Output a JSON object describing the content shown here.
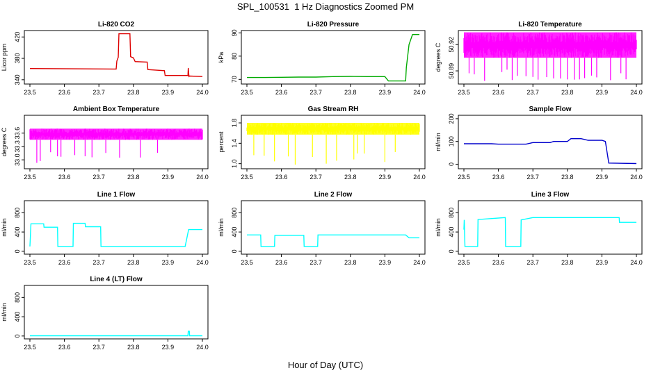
{
  "page": {
    "title": "SPL_100531  1 Hz Diagnostics Zoomed PM",
    "xlabel": "Hour of Day (UTC)"
  },
  "chart_data": [
    {
      "type": "line",
      "title": "Li-820 CO2",
      "ylabel": "Licor ppm",
      "color": "#dd0000",
      "xlim": [
        23.5,
        24.0
      ],
      "ylim": [
        332,
        432
      ],
      "yticks": [
        340,
        380,
        420
      ],
      "ytick_labels": [
        "340",
        "380",
        "420"
      ],
      "xticks": [
        23.5,
        23.6,
        23.7,
        23.8,
        23.9,
        24.0
      ],
      "series": [
        {
          "x": [
            23.5,
            23.75,
            23.752,
            23.756,
            23.758,
            23.79,
            23.792,
            23.8,
            23.805,
            23.84,
            23.842,
            23.89,
            23.892,
            23.958,
            23.959,
            23.961,
            23.963,
            24.0
          ],
          "y": [
            361,
            360,
            375,
            382,
            426,
            426,
            383,
            381,
            374,
            373,
            359,
            357,
            348,
            348,
            362,
            346,
            347,
            346
          ]
        }
      ]
    },
    {
      "type": "line",
      "title": "Li-820 Pressure",
      "ylabel": "kPa",
      "color": "#00aa00",
      "xlim": [
        23.5,
        24.0
      ],
      "ylim": [
        68,
        91
      ],
      "yticks": [
        70,
        80,
        90
      ],
      "ytick_labels": [
        "70",
        "80",
        "90"
      ],
      "xticks": [
        23.5,
        23.6,
        23.7,
        23.8,
        23.9,
        24.0
      ],
      "series": [
        {
          "x": [
            23.5,
            23.55,
            23.6,
            23.65,
            23.7,
            23.75,
            23.8,
            23.85,
            23.9,
            23.91,
            23.96,
            23.962,
            23.97,
            23.98,
            24.0
          ],
          "y": [
            70.8,
            70.8,
            70.9,
            71.0,
            71.0,
            71.2,
            71.3,
            71.2,
            71.2,
            69.3,
            69.3,
            75,
            85,
            89.3,
            89.3
          ]
        }
      ]
    },
    {
      "type": "line",
      "title": "Li-820 Temperature",
      "ylabel": "degrees C",
      "color": "#ff00ff",
      "xlim": [
        23.5,
        24.0
      ],
      "ylim": [
        50.875,
        50.936
      ],
      "yticks": [
        50.89,
        50.92
      ],
      "ytick_labels": [
        "50.89",
        "50.92"
      ],
      "xticks": [
        23.5,
        23.6,
        23.7,
        23.8,
        23.9,
        24.0
      ],
      "band": {
        "low": 50.905,
        "high": 50.934
      },
      "spikes": [
        23.515,
        23.53,
        23.56,
        23.61,
        23.625,
        23.64,
        23.655,
        23.68,
        23.7,
        23.715,
        23.74,
        23.76,
        23.78,
        23.8,
        23.82,
        23.835,
        23.85,
        23.87,
        23.885,
        23.925,
        23.955,
        23.97
      ],
      "spike_min": 50.878
    },
    {
      "type": "line",
      "title": "Ambient Box Temperature",
      "ylabel": "degrees C",
      "color": "#ff00ff",
      "xlim": [
        23.5,
        24.0
      ],
      "ylim": [
        32.8,
        34.0
      ],
      "yticks": [
        33.0,
        33.3,
        33.6
      ],
      "ytick_labels": [
        "33.0",
        "33.3",
        "33.6"
      ],
      "xticks": [
        23.5,
        23.6,
        23.7,
        23.8,
        23.9,
        24.0
      ],
      "band": {
        "low": 33.45,
        "high": 33.7
      },
      "spikes": [
        23.52,
        23.53,
        23.56,
        23.58,
        23.59,
        23.63,
        23.66,
        23.68,
        23.72,
        23.76,
        23.82,
        23.87
      ],
      "spike_min": 32.9
    },
    {
      "type": "line",
      "title": "Gas Stream RH",
      "ylabel": "percent",
      "color": "#ffff00",
      "xlim": [
        23.5,
        24.0
      ],
      "ylim": [
        0.9,
        1.95
      ],
      "yticks": [
        1.0,
        1.4,
        1.8
      ],
      "ytick_labels": [
        "1.0",
        "1.4",
        "1.8"
      ],
      "xticks": [
        23.5,
        23.6,
        23.7,
        23.8,
        23.9,
        24.0
      ],
      "band": {
        "low": 1.57,
        "high": 1.8
      },
      "spikes": [
        23.52,
        23.55,
        23.58,
        23.62,
        23.64,
        23.69,
        23.73,
        23.76,
        23.81,
        23.82,
        23.84,
        23.9,
        23.93
      ],
      "spike_min": 0.92
    },
    {
      "type": "line",
      "title": "Sample Flow",
      "ylabel": "ml/min",
      "color": "#0000cc",
      "xlim": [
        23.5,
        24.0
      ],
      "ylim": [
        -20,
        215
      ],
      "yticks": [
        0,
        100,
        200
      ],
      "ytick_labels": [
        "0",
        "100",
        "200"
      ],
      "xticks": [
        23.5,
        23.6,
        23.7,
        23.8,
        23.9,
        24.0
      ],
      "series": [
        {
          "x": [
            23.5,
            23.58,
            23.6,
            23.68,
            23.7,
            23.75,
            23.76,
            23.8,
            23.81,
            23.84,
            23.86,
            23.9,
            23.91,
            23.92,
            24.0
          ],
          "y": [
            90,
            90,
            88,
            88,
            95,
            95,
            100,
            100,
            112,
            112,
            105,
            105,
            100,
            5,
            3
          ]
        }
      ]
    },
    {
      "type": "line",
      "title": "Line 1 Flow",
      "ylabel": "ml/min",
      "color": "#00ffff",
      "xlim": [
        23.5,
        24.0
      ],
      "ylim": [
        -60,
        1050
      ],
      "yticks": [
        0,
        400,
        800
      ],
      "ytick_labels": [
        "0",
        "400",
        "800"
      ],
      "xticks": [
        23.5,
        23.6,
        23.7,
        23.8,
        23.9,
        24.0
      ],
      "series": [
        {
          "x": [
            23.5,
            23.503,
            23.54,
            23.541,
            23.58,
            23.581,
            23.625,
            23.626,
            23.66,
            23.661,
            23.705,
            23.706,
            23.95,
            23.96,
            24.0
          ],
          "y": [
            100,
            570,
            570,
            500,
            500,
            100,
            100,
            580,
            580,
            510,
            510,
            100,
            100,
            450,
            450
          ]
        }
      ]
    },
    {
      "type": "line",
      "title": "Line 2 Flow",
      "ylabel": "ml/min",
      "color": "#00ffff",
      "xlim": [
        23.5,
        24.0
      ],
      "ylim": [
        -60,
        1050
      ],
      "yticks": [
        0,
        400,
        800
      ],
      "ytick_labels": [
        "0",
        "400",
        "800"
      ],
      "xticks": [
        23.5,
        23.6,
        23.7,
        23.8,
        23.9,
        24.0
      ],
      "series": [
        {
          "x": [
            23.5,
            23.54,
            23.541,
            23.58,
            23.581,
            23.665,
            23.666,
            23.705,
            23.706,
            23.96,
            23.97,
            24.0
          ],
          "y": [
            340,
            340,
            100,
            100,
            330,
            330,
            100,
            100,
            340,
            340,
            280,
            280
          ]
        }
      ]
    },
    {
      "type": "line",
      "title": "Line 3 Flow",
      "ylabel": "ml/min",
      "color": "#00ffff",
      "xlim": [
        23.5,
        24.0
      ],
      "ylim": [
        -60,
        1050
      ],
      "yticks": [
        0,
        400,
        800
      ],
      "ytick_labels": [
        "0",
        "400",
        "800"
      ],
      "xticks": [
        23.5,
        23.6,
        23.7,
        23.8,
        23.9,
        24.0
      ],
      "series": [
        {
          "x": [
            23.5,
            23.501,
            23.503,
            23.54,
            23.541,
            23.62,
            23.621,
            23.665,
            23.666,
            23.7,
            23.9,
            23.95,
            23.951,
            24.0
          ],
          "y": [
            450,
            650,
            100,
            100,
            660,
            700,
            100,
            100,
            650,
            700,
            700,
            700,
            600,
            600
          ]
        }
      ]
    },
    {
      "type": "line",
      "title": "Line 4 (LT) Flow",
      "ylabel": "ml/min",
      "color": "#00ffff",
      "xlim": [
        23.5,
        24.0
      ],
      "ylim": [
        -60,
        1050
      ],
      "yticks": [
        0,
        400,
        800
      ],
      "ytick_labels": [
        "0",
        "400",
        "800"
      ],
      "xticks": [
        23.5,
        23.6,
        23.7,
        23.8,
        23.9,
        24.0
      ],
      "series": [
        {
          "x": [
            23.5,
            23.958,
            23.959,
            23.962,
            23.963,
            24.0
          ],
          "y": [
            5,
            5,
            100,
            100,
            5,
            5
          ]
        }
      ]
    }
  ]
}
